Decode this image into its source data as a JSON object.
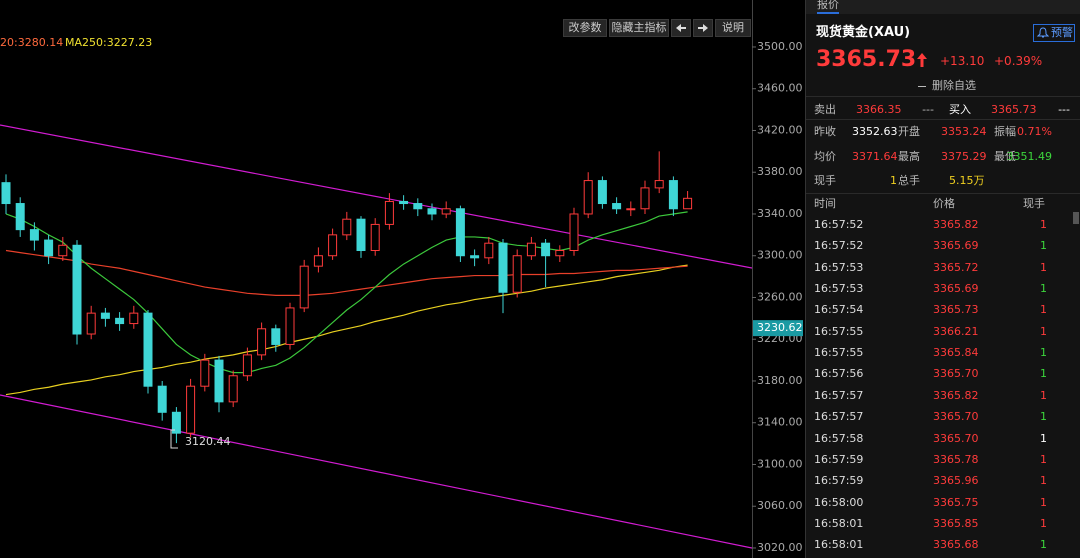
{
  "toolbar": {
    "buttons": [
      "改参数",
      "隐藏主指标",
      "说明"
    ]
  },
  "chart": {
    "type": "candlestick",
    "legend": [
      {
        "text": "20:3280.14",
        "color": "#ff6a3d"
      },
      {
        "text": "MA250:3227.23",
        "color": "#f0e130"
      }
    ],
    "ylim": [
      3010.4,
      3508.6
    ],
    "yticks": [
      {
        "value": 3500,
        "label": "3500.00"
      },
      {
        "value": 3460,
        "label": "3460.00"
      },
      {
        "value": 3420,
        "label": "3420.00"
      },
      {
        "value": 3380,
        "label": "3380.00"
      },
      {
        "value": 3340,
        "label": "3340.00"
      },
      {
        "value": 3300,
        "label": "3300.00"
      },
      {
        "value": 3260,
        "label": "3260.00"
      },
      {
        "value": 3220,
        "label": "3220.00"
      },
      {
        "value": 3180,
        "label": "3180.00"
      },
      {
        "value": 3140,
        "label": "3140.00"
      },
      {
        "value": 3100,
        "label": "3100.00"
      },
      {
        "value": 3060,
        "label": "3060.00"
      },
      {
        "value": 3020,
        "label": "3020.00"
      }
    ],
    "price_tag": 3230.62,
    "up_color": "#ff3b3b",
    "down_color": "#3fd6d6",
    "candles": {
      "open": [
        3370,
        3350,
        3325,
        3315,
        3300,
        3310,
        3225,
        3245,
        3240,
        3235,
        3245,
        3175,
        3150,
        3130,
        3175,
        3200,
        3160,
        3185,
        3205,
        3230,
        3215,
        3250,
        3290,
        3300,
        3320,
        3335,
        3305,
        3330,
        3352,
        3350,
        3345,
        3340,
        3345,
        3300,
        3298,
        3312,
        3265,
        3300,
        3312,
        3300,
        3305,
        3340,
        3372,
        3350,
        3345,
        3345,
        3365,
        3372,
        3345
      ],
      "high": [
        3378,
        3356,
        3332,
        3320,
        3318,
        3315,
        3252,
        3250,
        3246,
        3252,
        3248,
        3180,
        3155,
        3182,
        3206,
        3204,
        3190,
        3212,
        3236,
        3234,
        3255,
        3296,
        3308,
        3326,
        3342,
        3338,
        3336,
        3360,
        3358,
        3355,
        3350,
        3352,
        3348,
        3306,
        3318,
        3316,
        3306,
        3318,
        3316,
        3310,
        3346,
        3380,
        3376,
        3356,
        3352,
        3372,
        3400,
        3376,
        3362
      ],
      "low": [
        3340,
        3318,
        3305,
        3292,
        3295,
        3215,
        3220,
        3232,
        3228,
        3230,
        3168,
        3142,
        3120.44,
        3126,
        3170,
        3150,
        3155,
        3180,
        3200,
        3208,
        3210,
        3246,
        3284,
        3296,
        3315,
        3298,
        3300,
        3325,
        3344,
        3338,
        3334,
        3336,
        3294,
        3290,
        3292,
        3245,
        3260,
        3296,
        3270,
        3294,
        3300,
        3336,
        3345,
        3340,
        3338,
        3340,
        3360,
        3338,
        3348
      ],
      "close": [
        3350,
        3325,
        3315,
        3300,
        3310,
        3225,
        3245,
        3240,
        3235,
        3245,
        3175,
        3150,
        3130,
        3175,
        3200,
        3160,
        3185,
        3205,
        3230,
        3215,
        3250,
        3290,
        3300,
        3320,
        3335,
        3305,
        3330,
        3352,
        3350,
        3345,
        3340,
        3345,
        3300,
        3298,
        3312,
        3265,
        3300,
        3312,
        3300,
        3305,
        3340,
        3372,
        3350,
        3345,
        3345,
        3365,
        3372,
        3345,
        3355
      ]
    },
    "ma": [
      {
        "color": "#e8d020",
        "values": [
          3167,
          3169,
          3172,
          3174,
          3177,
          3179,
          3181,
          3184,
          3186,
          3189,
          3191,
          3193,
          3196,
          3198,
          3201,
          3203,
          3205,
          3208,
          3210,
          3213,
          3217,
          3220,
          3223,
          3227,
          3230,
          3233,
          3237,
          3240,
          3243,
          3247,
          3250,
          3253,
          3255,
          3258,
          3260,
          3262,
          3264,
          3266,
          3269,
          3271,
          3273,
          3275,
          3277,
          3280,
          3282,
          3284,
          3286,
          3289,
          3291
        ]
      },
      {
        "color": "#e8402a",
        "values": [
          3305,
          3303,
          3301,
          3299,
          3297,
          3295,
          3292,
          3290,
          3288,
          3285,
          3282,
          3279,
          3276,
          3273,
          3270,
          3268,
          3266,
          3264,
          3263,
          3262,
          3262,
          3262,
          3263,
          3264,
          3266,
          3268,
          3270,
          3272,
          3274,
          3276,
          3278,
          3279,
          3280,
          3281,
          3281,
          3281,
          3282,
          3282,
          3282,
          3283,
          3283,
          3284,
          3285,
          3286,
          3286,
          3287,
          3288,
          3289,
          3290
        ]
      },
      {
        "color": "#3cc83c",
        "values": [
          3340,
          3335,
          3328,
          3320,
          3313,
          3300,
          3288,
          3278,
          3268,
          3258,
          3245,
          3230,
          3215,
          3205,
          3198,
          3192,
          3188,
          3188,
          3192,
          3195,
          3202,
          3212,
          3224,
          3236,
          3248,
          3258,
          3270,
          3282,
          3292,
          3300,
          3308,
          3315,
          3318,
          3318,
          3317,
          3312,
          3310,
          3309,
          3307,
          3305,
          3308,
          3315,
          3320,
          3324,
          3328,
          3332,
          3338,
          3340,
          3342
        ]
      }
    ]
  },
  "quote": {
    "tab": "报价",
    "name": "现货黄金(XAU)",
    "alert": "预警",
    "price": "3365.73",
    "change": "+13.10",
    "change_pct": "+0.39%",
    "remove": "删除自选",
    "stats": [
      [
        {
          "text": "卖出"
        },
        {
          "text": "3366.35",
          "color": "#ff3b3b"
        },
        {
          "text": "---"
        },
        {
          "text": "买入"
        },
        {
          "text": "3365.73",
          "color": "#ff3b3b"
        },
        {
          "text": "---"
        }
      ],
      [
        {
          "text": "昨收"
        },
        {
          "text": "3352.63"
        },
        {
          "text": "开盘"
        },
        {
          "text": "3353.24",
          "color": "#ff3b3b"
        },
        {
          "text": "振幅"
        },
        {
          "text": "0.71%",
          "color": "#ff3b3b"
        }
      ],
      [
        {
          "text": "均价"
        },
        {
          "text": "3371.64",
          "color": "#ff3b3b"
        },
        {
          "text": "最高"
        },
        {
          "text": "3375.29",
          "color": "#ff3b3b"
        },
        {
          "text": "最低"
        },
        {
          "text": "3351.49",
          "color": "#3cd63c"
        }
      ],
      [
        {
          "text": "现手"
        },
        {
          "text": "1",
          "color": "#f0d020"
        },
        {
          "text": "总手"
        },
        {
          "text": "5.15万",
          "color": "#f0d020"
        }
      ]
    ]
  },
  "trades": {
    "headers": [
      "时间",
      "价格",
      "现手"
    ],
    "rows": [
      [
        "16:57:52",
        "3365.82",
        "1",
        "#ff3b3b"
      ],
      [
        "16:57:52",
        "3365.69",
        "1",
        "#3cd63c"
      ],
      [
        "16:57:53",
        "3365.72",
        "1",
        "#ff3b3b"
      ],
      [
        "16:57:53",
        "3365.69",
        "1",
        "#3cd63c"
      ],
      [
        "16:57:54",
        "3365.73",
        "1",
        "#ff3b3b"
      ],
      [
        "16:57:55",
        "3366.21",
        "1",
        "#ff3b3b"
      ],
      [
        "16:57:55",
        "3365.84",
        "1",
        "#3cd63c"
      ],
      [
        "16:57:56",
        "3365.70",
        "1",
        "#3cd63c"
      ],
      [
        "16:57:57",
        "3365.82",
        "1",
        "#ff3b3b"
      ],
      [
        "16:57:57",
        "3365.70",
        "1",
        "#3cd63c"
      ],
      [
        "16:57:58",
        "3365.70",
        "1",
        "#ffffff"
      ],
      [
        "16:57:59",
        "3365.78",
        "1",
        "#ff3b3b"
      ],
      [
        "16:57:59",
        "3365.96",
        "1",
        "#ff3b3b"
      ],
      [
        "16:58:00",
        "3365.75",
        "1",
        "#ff3b3b"
      ],
      [
        "16:58:01",
        "3365.85",
        "1",
        "#ff3b3b"
      ],
      [
        "16:58:01",
        "3365.68",
        "1",
        "#3cd63c"
      ]
    ]
  }
}
